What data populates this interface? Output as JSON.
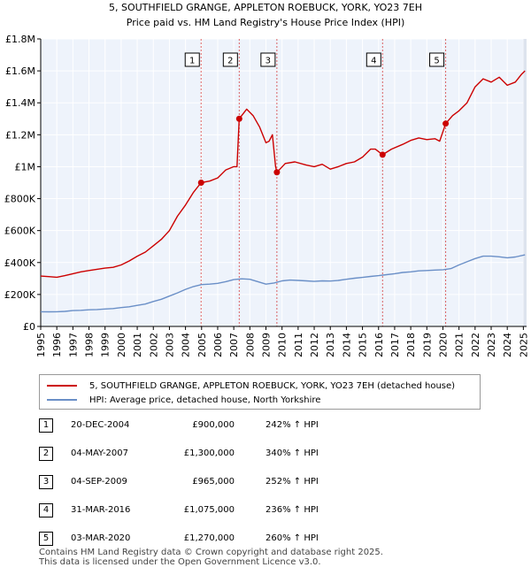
{
  "chart_data": {
    "type": "line",
    "title": "5, SOUTHFIELD GRANGE, APPLETON ROEBUCK, YORK, YO23 7EH",
    "subtitle": "Price paid vs. HM Land Registry's House Price Index (HPI)",
    "xlim": [
      1995,
      2025.2
    ],
    "ylim": [
      0,
      1800000
    ],
    "x_ticks": [
      "1995",
      "1996",
      "1997",
      "1998",
      "1999",
      "2000",
      "2001",
      "2002",
      "2003",
      "2004",
      "2005",
      "2006",
      "2007",
      "2008",
      "2009",
      "2010",
      "2011",
      "2012",
      "2013",
      "2014",
      "2015",
      "2016",
      "2017",
      "2018",
      "2019",
      "2020",
      "2021",
      "2022",
      "2023",
      "2024",
      "2025"
    ],
    "y_ticks": [
      {
        "value": 0,
        "label": "£0"
      },
      {
        "value": 200000,
        "label": "£200K"
      },
      {
        "value": 400000,
        "label": "£400K"
      },
      {
        "value": 600000,
        "label": "£600K"
      },
      {
        "value": 800000,
        "label": "£800K"
      },
      {
        "value": 1000000,
        "label": "£1M"
      },
      {
        "value": 1200000,
        "label": "£1.2M"
      },
      {
        "value": 1400000,
        "label": "£1.4M"
      },
      {
        "value": 1600000,
        "label": "£1.6M"
      },
      {
        "value": 1800000,
        "label": "£1.8M"
      }
    ],
    "grid": true,
    "series": [
      {
        "name": "5, SOUTHFIELD GRANGE, APPLETON ROEBUCK, YORK, YO23 7EH (detached house)",
        "color": "#cc0000",
        "points": [
          [
            1995,
            315000
          ],
          [
            1995.5,
            312000
          ],
          [
            1996,
            308000
          ],
          [
            1996.5,
            318000
          ],
          [
            1997,
            330000
          ],
          [
            1997.5,
            342000
          ],
          [
            1998,
            350000
          ],
          [
            1998.5,
            358000
          ],
          [
            1999,
            365000
          ],
          [
            1999.5,
            370000
          ],
          [
            2000,
            385000
          ],
          [
            2000.5,
            410000
          ],
          [
            2001,
            440000
          ],
          [
            2001.5,
            465000
          ],
          [
            2002,
            505000
          ],
          [
            2002.5,
            545000
          ],
          [
            2003,
            600000
          ],
          [
            2003.5,
            690000
          ],
          [
            2004,
            760000
          ],
          [
            2004.5,
            840000
          ],
          [
            2004.97,
            900000
          ],
          [
            2005.5,
            910000
          ],
          [
            2006,
            930000
          ],
          [
            2006.5,
            980000
          ],
          [
            2007.0,
            1000000
          ],
          [
            2007.2,
            1000000
          ],
          [
            2007.34,
            1300000
          ],
          [
            2007.8,
            1360000
          ],
          [
            2008.2,
            1320000
          ],
          [
            2008.6,
            1250000
          ],
          [
            2009.0,
            1150000
          ],
          [
            2009.2,
            1160000
          ],
          [
            2009.4,
            1200000
          ],
          [
            2009.6,
            1000000
          ],
          [
            2009.68,
            965000
          ],
          [
            2010.2,
            1020000
          ],
          [
            2010.8,
            1030000
          ],
          [
            2011.5,
            1010000
          ],
          [
            2012,
            1000000
          ],
          [
            2012.5,
            1015000
          ],
          [
            2013,
            985000
          ],
          [
            2013.5,
            1000000
          ],
          [
            2014,
            1020000
          ],
          [
            2014.5,
            1030000
          ],
          [
            2015,
            1060000
          ],
          [
            2015.5,
            1110000
          ],
          [
            2015.8,
            1110000
          ],
          [
            2016.25,
            1075000
          ],
          [
            2016.8,
            1110000
          ],
          [
            2017.5,
            1140000
          ],
          [
            2018,
            1165000
          ],
          [
            2018.5,
            1180000
          ],
          [
            2019,
            1170000
          ],
          [
            2019.5,
            1175000
          ],
          [
            2019.8,
            1160000
          ],
          [
            2020.17,
            1270000
          ],
          [
            2020.6,
            1320000
          ],
          [
            2021,
            1350000
          ],
          [
            2021.5,
            1400000
          ],
          [
            2022,
            1500000
          ],
          [
            2022.5,
            1550000
          ],
          [
            2023,
            1530000
          ],
          [
            2023.5,
            1560000
          ],
          [
            2024,
            1510000
          ],
          [
            2024.5,
            1530000
          ],
          [
            2024.9,
            1580000
          ],
          [
            2025.1,
            1600000
          ]
        ]
      },
      {
        "name": "HPI: Average price, detached house, North Yorkshire",
        "color": "#6a8fc7",
        "points": [
          [
            1995,
            92000
          ],
          [
            1995.5,
            91500
          ],
          [
            1996,
            92000
          ],
          [
            1996.5,
            94000
          ],
          [
            1997,
            99000
          ],
          [
            1997.5,
            101000
          ],
          [
            1998,
            104000
          ],
          [
            1998.5,
            106000
          ],
          [
            1999,
            109000
          ],
          [
            1999.5,
            112000
          ],
          [
            2000,
            118000
          ],
          [
            2000.5,
            123000
          ],
          [
            2001,
            132000
          ],
          [
            2001.5,
            140000
          ],
          [
            2002,
            156000
          ],
          [
            2002.5,
            170000
          ],
          [
            2003,
            190000
          ],
          [
            2003.5,
            210000
          ],
          [
            2004,
            232000
          ],
          [
            2004.5,
            250000
          ],
          [
            2005,
            262000
          ],
          [
            2005.5,
            265000
          ],
          [
            2006,
            270000
          ],
          [
            2006.5,
            280000
          ],
          [
            2007,
            293000
          ],
          [
            2007.5,
            298000
          ],
          [
            2008,
            295000
          ],
          [
            2008.5,
            280000
          ],
          [
            2009,
            265000
          ],
          [
            2009.5,
            272000
          ],
          [
            2010,
            285000
          ],
          [
            2010.5,
            290000
          ],
          [
            2011,
            288000
          ],
          [
            2011.5,
            285000
          ],
          [
            2012,
            282000
          ],
          [
            2012.5,
            285000
          ],
          [
            2013,
            284000
          ],
          [
            2013.5,
            288000
          ],
          [
            2014,
            295000
          ],
          [
            2014.5,
            302000
          ],
          [
            2015,
            307000
          ],
          [
            2015.5,
            313000
          ],
          [
            2016,
            318000
          ],
          [
            2016.5,
            324000
          ],
          [
            2017,
            330000
          ],
          [
            2017.5,
            338000
          ],
          [
            2018,
            342000
          ],
          [
            2018.5,
            348000
          ],
          [
            2019,
            350000
          ],
          [
            2019.5,
            353000
          ],
          [
            2020,
            355000
          ],
          [
            2020.5,
            362000
          ],
          [
            2021,
            385000
          ],
          [
            2021.5,
            405000
          ],
          [
            2022,
            425000
          ],
          [
            2022.5,
            440000
          ],
          [
            2023,
            440000
          ],
          [
            2023.5,
            436000
          ],
          [
            2024,
            430000
          ],
          [
            2024.5,
            435000
          ],
          [
            2025.1,
            448000
          ]
        ]
      }
    ],
    "sales": [
      {
        "n": "1",
        "x": 2004.97,
        "y": 900000
      },
      {
        "n": "2",
        "x": 2007.34,
        "y": 1300000
      },
      {
        "n": "3",
        "x": 2009.68,
        "y": 965000
      },
      {
        "n": "4",
        "x": 2016.25,
        "y": 1075000
      },
      {
        "n": "5",
        "x": 2020.17,
        "y": 1270000
      }
    ]
  },
  "legend": {
    "property_label": "5, SOUTHFIELD GRANGE, APPLETON ROEBUCK, YORK, YO23 7EH (detached house)",
    "hpi_label": "HPI: Average price, detached house, North Yorkshire",
    "property_color": "#cc0000",
    "hpi_color": "#6a8fc7"
  },
  "sales_table": [
    {
      "n": "1",
      "date": "20-DEC-2004",
      "price": "£900,000",
      "hpi": "242% ↑ HPI"
    },
    {
      "n": "2",
      "date": "04-MAY-2007",
      "price": "£1,300,000",
      "hpi": "340% ↑ HPI"
    },
    {
      "n": "3",
      "date": "04-SEP-2009",
      "price": "£965,000",
      "hpi": "252% ↑ HPI"
    },
    {
      "n": "4",
      "date": "31-MAR-2016",
      "price": "£1,075,000",
      "hpi": "236% ↑ HPI"
    },
    {
      "n": "5",
      "date": "03-MAR-2020",
      "price": "£1,270,000",
      "hpi": "260% ↑ HPI"
    }
  ],
  "footer": {
    "line1": "Contains HM Land Registry data © Crown copyright and database right 2025.",
    "line2": "This data is licensed under the Open Government Licence v3.0."
  }
}
